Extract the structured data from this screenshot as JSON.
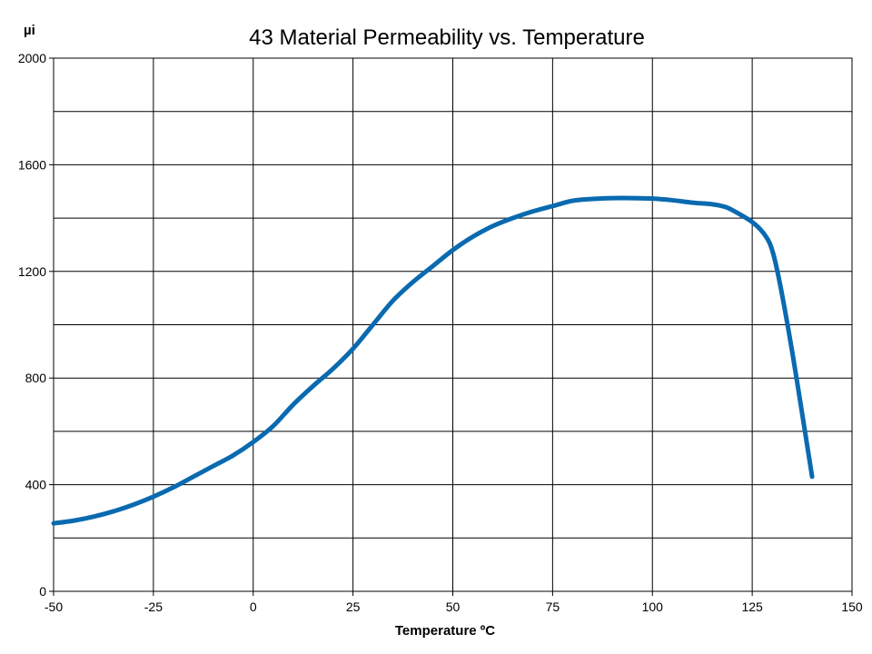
{
  "chart_data": {
    "type": "line",
    "title": "43 Material Permeability vs. Temperature",
    "xlabel": "Temperature ºC",
    "ylabel": "µi",
    "xlim": [
      -50,
      150
    ],
    "ylim": [
      0,
      2000
    ],
    "x_ticks": [
      -50,
      -25,
      0,
      25,
      50,
      75,
      100,
      125,
      150
    ],
    "y_ticks": [
      0,
      400,
      800,
      1200,
      1600,
      2000
    ],
    "grid": true,
    "legend": "none",
    "series": [
      {
        "color": "#0a6ab0",
        "x": [
          -50,
          -45,
          -40,
          -35,
          -30,
          -25,
          -20,
          -15,
          -10,
          -5,
          0,
          5,
          10,
          15,
          20,
          25,
          30,
          35,
          40,
          45,
          50,
          55,
          60,
          65,
          70,
          75,
          80,
          85,
          90,
          95,
          100,
          105,
          110,
          115,
          118,
          120,
          125,
          128,
          130,
          132,
          135,
          138,
          140
        ],
        "y": [
          255,
          265,
          280,
          300,
          325,
          355,
          390,
          430,
          470,
          510,
          560,
          620,
          700,
          770,
          835,
          910,
          1000,
          1090,
          1160,
          1220,
          1280,
          1330,
          1370,
          1400,
          1425,
          1445,
          1465,
          1472,
          1475,
          1475,
          1473,
          1467,
          1458,
          1452,
          1443,
          1430,
          1385,
          1340,
          1280,
          1150,
          900,
          620,
          430
        ]
      }
    ]
  }
}
